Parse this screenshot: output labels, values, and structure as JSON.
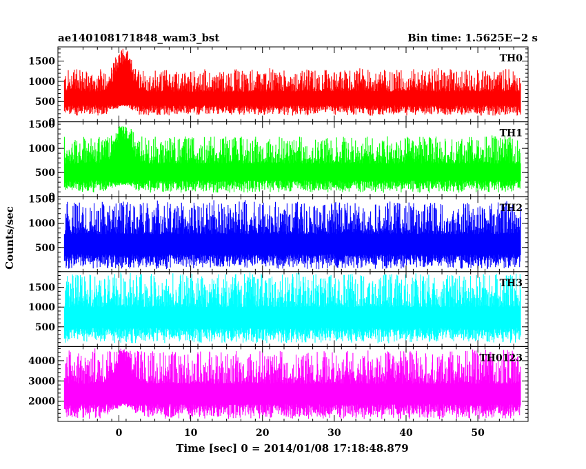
{
  "header": {
    "title": "ae140108171848_wam3_bst",
    "bin_time": "Bin time: 1.5625E−2 s"
  },
  "chart_data": {
    "type": "line",
    "title": "ae140108171848_wam3_bst",
    "subtitle": "Bin time: 1.5625E−2 s",
    "xlabel": "Time [sec] 0 = 2014/01/08 17:18:48.879",
    "ylabel": "Counts/sec",
    "xlim": [
      -8.5,
      57
    ],
    "x_data_range": [
      -7.6,
      56
    ],
    "bin_time_s": 0.015625,
    "x_ticks": [
      0,
      10,
      20,
      30,
      40,
      50
    ],
    "x_tick_labels": [
      "0",
      "10",
      "20",
      "30",
      "40",
      "50"
    ],
    "grid": false,
    "legend": "none",
    "panels": [
      {
        "name": "TH0",
        "color": "#ff0000",
        "ylim": [
          0,
          1850
        ],
        "y_ticks": [
          500,
          1000,
          1500
        ],
        "y_tick_labels": [
          "500",
          "1000",
          "1500"
        ],
        "edge_labels": [
          {
            "value": 0,
            "text": "0"
          }
        ],
        "baseline_range": [
          150,
          1300
        ],
        "burst": {
          "x": 0.6,
          "peak": 1850,
          "low_floor": 430
        }
      },
      {
        "name": "TH1",
        "color": "#00ff00",
        "ylim": [
          0,
          1550
        ],
        "y_ticks": [
          500,
          1000
        ],
        "y_tick_labels": [
          "500",
          "1000"
        ],
        "edge_labels": [
          {
            "value": 0,
            "text": "0"
          },
          {
            "value": 1500,
            "text": "1500"
          }
        ],
        "baseline_range": [
          80,
          1250
        ],
        "burst": {
          "x": 0.6,
          "peak": 1550,
          "low_floor": 280
        }
      },
      {
        "name": "TH2",
        "color": "#0000ff",
        "ylim": [
          0,
          1550
        ],
        "y_ticks": [
          500,
          1000
        ],
        "y_tick_labels": [
          "500",
          "1000"
        ],
        "edge_labels": [
          {
            "value": 1500,
            "text": "1500"
          }
        ],
        "baseline_range": [
          50,
          1450
        ],
        "burst": null
      },
      {
        "name": "TH3",
        "color": "#00ffff",
        "ylim": [
          0,
          1900
        ],
        "y_ticks": [
          500,
          1000,
          1500
        ],
        "y_tick_labels": [
          "500",
          "1000",
          "1500"
        ],
        "edge_labels": [],
        "baseline_range": [
          80,
          1850
        ],
        "burst": null
      },
      {
        "name": "TH0123",
        "color": "#ff00ff",
        "ylim": [
          1000,
          4700
        ],
        "y_ticks": [
          2000,
          3000,
          4000
        ],
        "y_tick_labels": [
          "2000",
          "3000",
          "4000"
        ],
        "edge_labels": [],
        "baseline_range": [
          1100,
          4500
        ],
        "burst": {
          "x": 0.6,
          "peak": 4600,
          "low_floor": 1900
        }
      }
    ]
  }
}
